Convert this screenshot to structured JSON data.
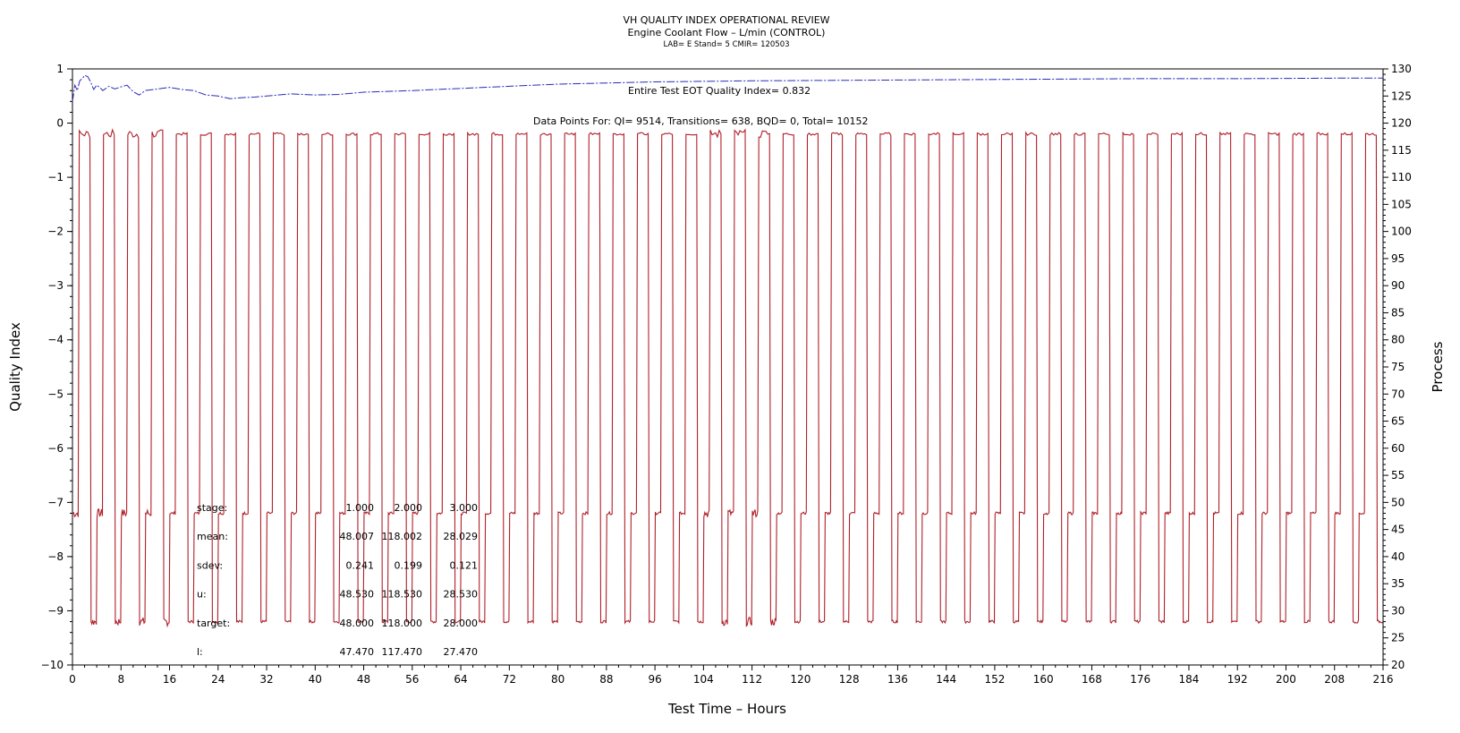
{
  "chart_data": {
    "type": "line",
    "title": "VH QUALITY INDEX OPERATIONAL REVIEW",
    "subtitle": "Engine Coolant Flow – L/min (CONTROL)",
    "subtitle2": "LAB= E Stand= 5 CMIR= 120503",
    "xlabel": "Test Time – Hours",
    "ylabel": "Quality Index",
    "y2label": "Process",
    "xlim": [
      0,
      216
    ],
    "ylim": [
      -10,
      1
    ],
    "y2lim": [
      20,
      130
    ],
    "grid": false,
    "xticks": [
      0,
      8,
      16,
      24,
      32,
      40,
      48,
      56,
      64,
      72,
      80,
      88,
      96,
      104,
      112,
      120,
      128,
      136,
      144,
      152,
      160,
      168,
      176,
      184,
      192,
      200,
      208,
      216
    ],
    "yticks": [
      1,
      0,
      -1,
      -2,
      -3,
      -4,
      -5,
      -6,
      -7,
      -8,
      -9,
      -10
    ],
    "y2ticks": [
      130,
      125,
      120,
      115,
      110,
      105,
      100,
      95,
      90,
      85,
      80,
      75,
      70,
      65,
      60,
      55,
      50,
      45,
      40,
      35,
      30,
      25,
      20
    ],
    "annotations": {
      "eot": "Entire Test EOT Quality Index=   0.832",
      "datapoints": "Data Points For: QI=  9514, Transitions=   638, BQD=     0, Total=  10152"
    },
    "series": [
      {
        "axis": "left",
        "color": "#2a2ab8",
        "style": "dashed",
        "x": [
          0,
          0.4,
          0.8,
          1.2,
          1.6,
          2,
          2.5,
          3,
          3.5,
          4,
          4.5,
          5,
          6,
          7,
          8,
          9,
          10,
          11,
          12,
          14,
          16,
          18,
          20,
          22,
          24,
          26,
          28,
          30,
          32,
          36,
          40,
          44,
          48,
          56,
          64,
          72,
          80,
          96,
          112,
          128,
          144,
          160,
          176,
          192,
          208,
          216
        ],
        "y": [
          0.4,
          0.7,
          0.6,
          0.78,
          0.82,
          0.88,
          0.86,
          0.76,
          0.62,
          0.7,
          0.66,
          0.6,
          0.68,
          0.63,
          0.67,
          0.7,
          0.58,
          0.52,
          0.6,
          0.63,
          0.66,
          0.62,
          0.6,
          0.52,
          0.5,
          0.45,
          0.47,
          0.48,
          0.5,
          0.54,
          0.52,
          0.53,
          0.57,
          0.6,
          0.64,
          0.68,
          0.72,
          0.76,
          0.78,
          0.79,
          0.8,
          0.81,
          0.82,
          0.82,
          0.83,
          0.832
        ]
      },
      {
        "axis": "right",
        "color": "#b0202a",
        "style": "solid",
        "pattern": "cycle",
        "cycle_hours": 4,
        "levels": [
          48,
          118,
          28
        ],
        "level_hours": [
          1,
          2,
          1
        ],
        "start_level": 48
      }
    ],
    "stats_table": {
      "columns": [
        "1.000",
        "2.000",
        "3.000"
      ],
      "rows": [
        {
          "label": "stage:",
          "values": [
            "1.000",
            "2.000",
            "3.000"
          ]
        },
        {
          "label": "mean:",
          "values": [
            "48.007",
            "118.002",
            "28.029"
          ]
        },
        {
          "label": "sdev:",
          "values": [
            "0.241",
            "0.199",
            "0.121"
          ]
        },
        {
          "label": "u:",
          "values": [
            "48.530",
            "118.530",
            "28.530"
          ]
        },
        {
          "label": "target:",
          "values": [
            "48.000",
            "118.000",
            "28.000"
          ]
        },
        {
          "label": "l:",
          "values": [
            "47.470",
            "117.470",
            "27.470"
          ]
        }
      ]
    }
  }
}
